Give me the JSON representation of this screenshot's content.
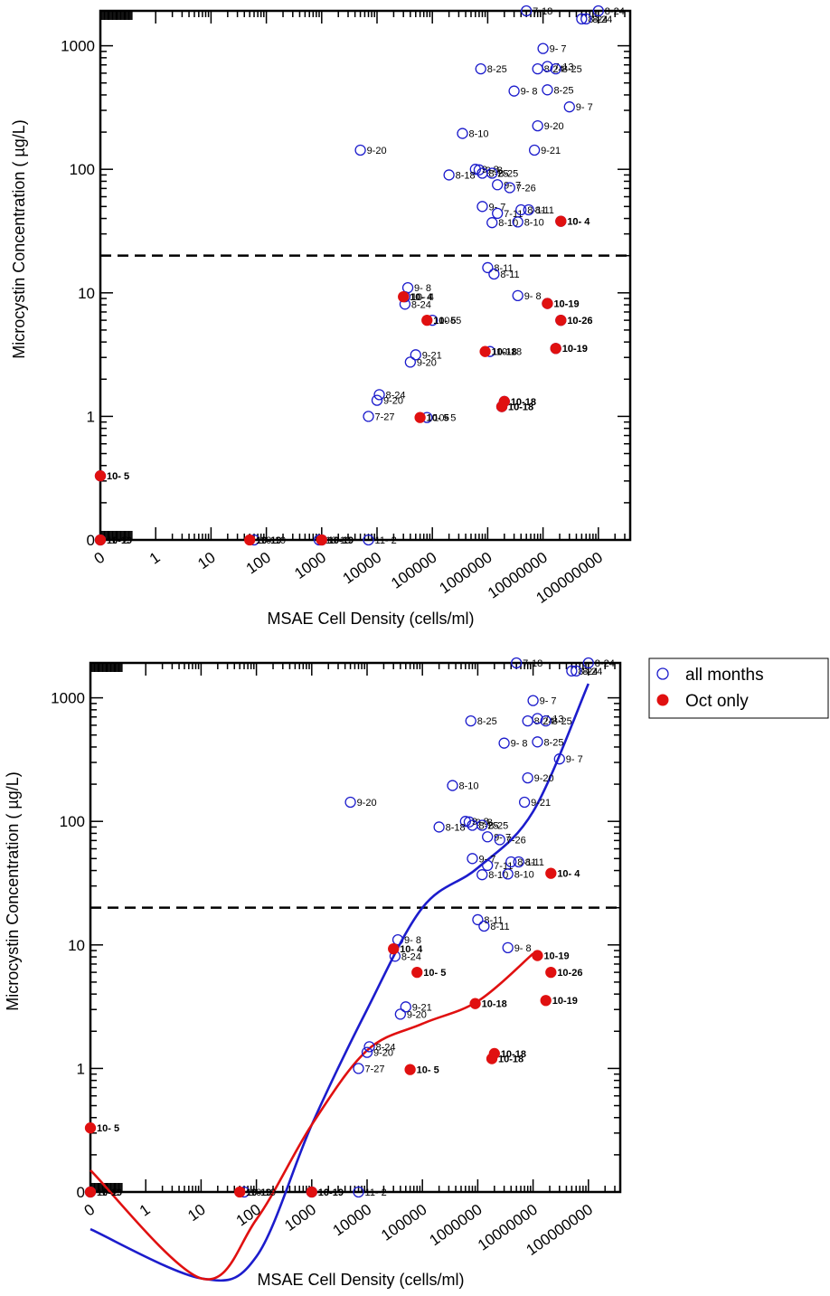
{
  "colors": {
    "all": "#1c1ccc",
    "oct": "#e01010",
    "axis": "#000000"
  },
  "legend": {
    "items": [
      {
        "label": "all months",
        "marker": "open-circle",
        "color": "#1c1ccc"
      },
      {
        "label": "Oct only",
        "marker": "filled-circle",
        "color": "#e01010"
      }
    ]
  },
  "chart_data": [
    {
      "type": "scatter",
      "xlabel": "MSAE Cell Density (cells/ml)",
      "ylabel": "Microcystin Concentration ( µg/L)",
      "x_scale": "log",
      "y_scale": "log",
      "x_tick_labels": [
        "0",
        "1",
        "10",
        "100",
        "1000",
        "10000",
        "100000",
        "1000000",
        "10000000",
        "100000000"
      ],
      "y_tick_labels": [
        "0",
        "1",
        "10",
        "100",
        "1000"
      ],
      "threshold_line": 20,
      "series": [
        {
          "name": "all months",
          "marker": "open-circle",
          "points": [
            {
              "x": 0,
              "y": 0.33,
              "label": "10- 5"
            },
            {
              "x": 0,
              "y": 0,
              "label": "11- 2"
            },
            {
              "x": 60,
              "y": 0,
              "label": "10-19"
            },
            {
              "x": 900,
              "y": 0,
              "label": "10-19"
            },
            {
              "x": 1000,
              "y": 0,
              "label": "10-19"
            },
            {
              "x": 7000,
              "y": 0,
              "label": "11- 2"
            },
            {
              "x": 7000,
              "y": 1.0,
              "label": "7-27"
            },
            {
              "x": 10000,
              "y": 1.35,
              "label": "9-20"
            },
            {
              "x": 11000,
              "y": 1.5,
              "label": "8-24"
            },
            {
              "x": 40000,
              "y": 2.75,
              "label": "9-20"
            },
            {
              "x": 50000,
              "y": 3.15,
              "label": "9-21"
            },
            {
              "x": 80000,
              "y": 0.98,
              "label": "10- 5"
            },
            {
              "x": 100000,
              "y": 6.0,
              "label": "10- 5"
            },
            {
              "x": 32000,
              "y": 8.1,
              "label": "8-24"
            },
            {
              "x": 32000,
              "y": 9.3,
              "label": "10- 4"
            },
            {
              "x": 36000,
              "y": 11.0,
              "label": "9- 8"
            },
            {
              "x": 1000000,
              "y": 16.0,
              "label": "8-11"
            },
            {
              "x": 1300000,
              "y": 14.2,
              "label": "8-11"
            },
            {
              "x": 3500000,
              "y": 9.5,
              "label": "9- 8"
            },
            {
              "x": 1100000,
              "y": 3.35,
              "label": "10-18"
            },
            {
              "x": 1800000,
              "y": 1.2,
              "label": "10-18"
            },
            {
              "x": 2000000,
              "y": 1.32,
              "label": "10-18"
            },
            {
              "x": 12000000,
              "y": 8.2,
              "label": "10-19"
            },
            {
              "x": 17000000,
              "y": 3.55,
              "label": "10-19"
            },
            {
              "x": 21000000,
              "y": 6.0,
              "label": "10-26"
            },
            {
              "x": 21000000,
              "y": 38.0,
              "label": "10- 4"
            },
            {
              "x": 800000,
              "y": 50.0,
              "label": "9- 7"
            },
            {
              "x": 1200000,
              "y": 37.0,
              "label": "8-10"
            },
            {
              "x": 1500000,
              "y": 44.0,
              "label": "7-11"
            },
            {
              "x": 3500000,
              "y": 37.5,
              "label": "8-10"
            },
            {
              "x": 4000000,
              "y": 47.0,
              "label": "8-11"
            },
            {
              "x": 5500000,
              "y": 47.0,
              "label": "8-11"
            },
            {
              "x": 1500000,
              "y": 75.0,
              "label": "9- 7"
            },
            {
              "x": 2500000,
              "y": 71.0,
              "label": "7-26"
            },
            {
              "x": 700000,
              "y": 99.0,
              "label": "9- 8"
            },
            {
              "x": 600000,
              "y": 100.0,
              "label": "9- 8"
            },
            {
              "x": 800000,
              "y": 93.0,
              "label": "8-25"
            },
            {
              "x": 1200000,
              "y": 93.0,
              "label": "8-25"
            },
            {
              "x": 200000,
              "y": 90.0,
              "label": "8-18"
            },
            {
              "x": 350000,
              "y": 195.0,
              "label": "8-10"
            },
            {
              "x": 5000,
              "y": 143.0,
              "label": "9-20"
            },
            {
              "x": 7000000,
              "y": 143.0,
              "label": "9-21"
            },
            {
              "x": 8000000,
              "y": 225.0,
              "label": "9-20"
            },
            {
              "x": 30000000,
              "y": 320.0,
              "label": "9- 7"
            },
            {
              "x": 3000000,
              "y": 430.0,
              "label": "9- 8"
            },
            {
              "x": 12000000,
              "y": 440.0,
              "label": "8-25"
            },
            {
              "x": 750000,
              "y": 650.0,
              "label": "8-25"
            },
            {
              "x": 8000000,
              "y": 650.0,
              "label": "8-24"
            },
            {
              "x": 12000000,
              "y": 680.0,
              "label": "7-13"
            },
            {
              "x": 17000000,
              "y": 650.0,
              "label": "8-25"
            },
            {
              "x": 10000000,
              "y": 950.0,
              "label": "9- 7"
            },
            {
              "x": 5000000,
              "y": 2000.0,
              "label": "7-18"
            },
            {
              "x": 50000000,
              "y": 1650.0,
              "label": "8-24"
            },
            {
              "x": 60000000,
              "y": 1650.0,
              "label": "8-24"
            },
            {
              "x": 100000000,
              "y": 2000.0,
              "label": "8-24"
            }
          ]
        },
        {
          "name": "Oct only",
          "marker": "filled-circle",
          "points": [
            {
              "x": 0,
              "y": 0.33,
              "label": "10- 5"
            },
            {
              "x": 0,
              "y": 0,
              "label": "10-19"
            },
            {
              "x": 50,
              "y": 0,
              "label": "10-19"
            },
            {
              "x": 1000,
              "y": 0,
              "label": "10-19"
            },
            {
              "x": 60000,
              "y": 0.98,
              "label": "10- 5"
            },
            {
              "x": 80000,
              "y": 6.0,
              "label": "10- 5"
            },
            {
              "x": 30000,
              "y": 9.3,
              "label": "10- 4"
            },
            {
              "x": 900000,
              "y": 3.35,
              "label": "10-18"
            },
            {
              "x": 1800000,
              "y": 1.2,
              "label": "10-18"
            },
            {
              "x": 2000000,
              "y": 1.32,
              "label": "10-18"
            },
            {
              "x": 12000000,
              "y": 8.2,
              "label": "10-19"
            },
            {
              "x": 17000000,
              "y": 3.55,
              "label": "10-19"
            },
            {
              "x": 21000000,
              "y": 6.0,
              "label": "10-26"
            },
            {
              "x": 21000000,
              "y": 38.0,
              "label": "10- 4"
            }
          ]
        }
      ]
    },
    {
      "type": "scatter",
      "xlabel": "MSAE Cell Density (cells/ml)",
      "ylabel": "Microcystin Concentration ( µg/L)",
      "x_scale": "log",
      "y_scale": "log",
      "x_tick_labels": [
        "0",
        "1",
        "10",
        "100",
        "1000",
        "10000",
        "100000",
        "1000000",
        "10000000",
        "100000000"
      ],
      "y_tick_labels": [
        "0",
        "1",
        "10",
        "100",
        "1000"
      ],
      "threshold_line": 20,
      "series": [
        {
          "name": "all months",
          "marker": "open-circle",
          "points": [
            {
              "x": 0,
              "y": 0,
              "label": "11- 2"
            },
            {
              "x": 60,
              "y": 0,
              "label": "10-19"
            },
            {
              "x": 1000,
              "y": 0,
              "label": "10-19"
            },
            {
              "x": 7000,
              "y": 0,
              "label": "11- 2"
            },
            {
              "x": 7000,
              "y": 1.0,
              "label": "7-27"
            },
            {
              "x": 10000,
              "y": 1.35,
              "label": "9-20"
            },
            {
              "x": 11000,
              "y": 1.5,
              "label": "8-24"
            },
            {
              "x": 40000,
              "y": 2.75,
              "label": "9-20"
            },
            {
              "x": 50000,
              "y": 3.15,
              "label": "9-21"
            },
            {
              "x": 32000,
              "y": 8.1,
              "label": "8-24"
            },
            {
              "x": 36000,
              "y": 11.0,
              "label": "9- 8"
            },
            {
              "x": 1000000,
              "y": 16.0,
              "label": "8-11"
            },
            {
              "x": 1300000,
              "y": 14.2,
              "label": "8-11"
            },
            {
              "x": 3500000,
              "y": 9.5,
              "label": "9- 8"
            },
            {
              "x": 800000,
              "y": 50.0,
              "label": "9- 7"
            },
            {
              "x": 1200000,
              "y": 37.0,
              "label": "8-10"
            },
            {
              "x": 1500000,
              "y": 44.0,
              "label": "7-11"
            },
            {
              "x": 3500000,
              "y": 37.5,
              "label": "8-10"
            },
            {
              "x": 4000000,
              "y": 47.0,
              "label": "8-11"
            },
            {
              "x": 5500000,
              "y": 47.0,
              "label": "8-11"
            },
            {
              "x": 1500000,
              "y": 75.0,
              "label": "9- 7"
            },
            {
              "x": 2500000,
              "y": 71.0,
              "label": "7-26"
            },
            {
              "x": 700000,
              "y": 99.0,
              "label": "9- 8"
            },
            {
              "x": 600000,
              "y": 100.0,
              "label": "9- 8"
            },
            {
              "x": 800000,
              "y": 93.0,
              "label": "8-25"
            },
            {
              "x": 1200000,
              "y": 93.0,
              "label": "8-25"
            },
            {
              "x": 200000,
              "y": 90.0,
              "label": "8-18"
            },
            {
              "x": 350000,
              "y": 195.0,
              "label": "8-10"
            },
            {
              "x": 5000,
              "y": 143.0,
              "label": "9-20"
            },
            {
              "x": 7000000,
              "y": 143.0,
              "label": "9-21"
            },
            {
              "x": 8000000,
              "y": 225.0,
              "label": "9-20"
            },
            {
              "x": 30000000,
              "y": 320.0,
              "label": "9- 7"
            },
            {
              "x": 3000000,
              "y": 430.0,
              "label": "9- 8"
            },
            {
              "x": 12000000,
              "y": 440.0,
              "label": "8-25"
            },
            {
              "x": 750000,
              "y": 650.0,
              "label": "8-25"
            },
            {
              "x": 8000000,
              "y": 650.0,
              "label": "8-24"
            },
            {
              "x": 12000000,
              "y": 680.0,
              "label": "7-13"
            },
            {
              "x": 17000000,
              "y": 650.0,
              "label": "8-25"
            },
            {
              "x": 10000000,
              "y": 950.0,
              "label": "9- 7"
            },
            {
              "x": 5000000,
              "y": 2000.0,
              "label": "7-18"
            },
            {
              "x": 50000000,
              "y": 1650.0,
              "label": "8-24"
            },
            {
              "x": 60000000,
              "y": 1650.0,
              "label": "8-24"
            },
            {
              "x": 100000000,
              "y": 2000.0,
              "label": "8-24"
            }
          ]
        },
        {
          "name": "Oct only",
          "marker": "filled-circle",
          "points": [
            {
              "x": 0,
              "y": 0.33,
              "label": "10- 5"
            },
            {
              "x": 0,
              "y": 0,
              "label": "10-19"
            },
            {
              "x": 50,
              "y": 0,
              "label": "10-19"
            },
            {
              "x": 1000,
              "y": 0,
              "label": "10-19"
            },
            {
              "x": 60000,
              "y": 0.98,
              "label": "10- 5"
            },
            {
              "x": 80000,
              "y": 6.0,
              "label": "10- 5"
            },
            {
              "x": 30000,
              "y": 9.3,
              "label": "10- 4"
            },
            {
              "x": 900000,
              "y": 3.35,
              "label": "10-18"
            },
            {
              "x": 1800000,
              "y": 1.2,
              "label": "10-18"
            },
            {
              "x": 2000000,
              "y": 1.32,
              "label": "10-18"
            },
            {
              "x": 12000000,
              "y": 8.2,
              "label": "10-19"
            },
            {
              "x": 17000000,
              "y": 3.55,
              "label": "10-19"
            },
            {
              "x": 21000000,
              "y": 6.0,
              "label": "10-26"
            },
            {
              "x": 21000000,
              "y": 38.0,
              "label": "10- 4"
            }
          ]
        }
      ],
      "fit_curves": [
        {
          "color": "blue",
          "points": [
            [
              0,
              0.05
            ],
            [
              10,
              0.02
            ],
            [
              100,
              0.03
            ],
            [
              1000,
              0.35
            ],
            [
              10000,
              3
            ],
            [
              100000,
              20
            ],
            [
              1000000,
              42
            ],
            [
              10000000,
              120
            ],
            [
              100000000,
              1300
            ]
          ]
        },
        {
          "color": "red",
          "points": [
            [
              0,
              0.15
            ],
            [
              10,
              0.02
            ],
            [
              100,
              0.06
            ],
            [
              1000,
              0.35
            ],
            [
              10000,
              1.4
            ],
            [
              100000,
              2.3
            ],
            [
              1000000,
              3.5
            ],
            [
              10000000,
              8.5
            ]
          ]
        }
      ]
    }
  ]
}
